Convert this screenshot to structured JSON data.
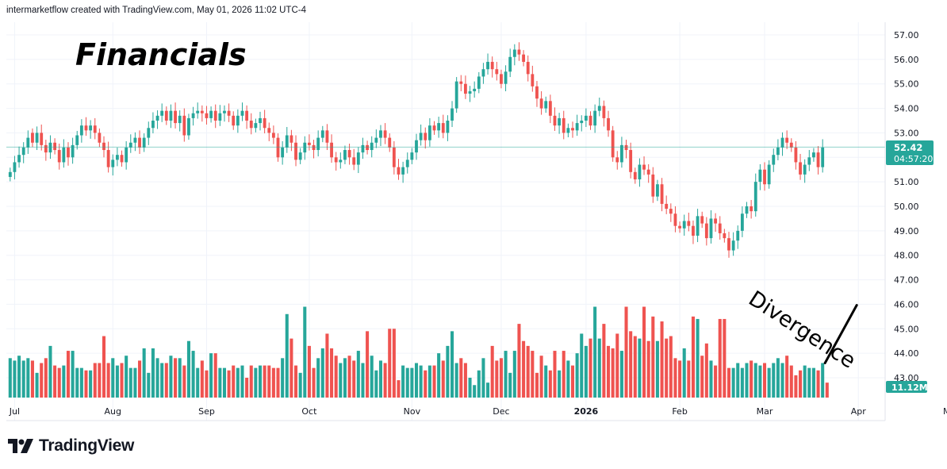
{
  "header": {
    "credit": "intermarketflow created with TradingView.com, May 01, 2026 11:02 UTC-4"
  },
  "brand": {
    "name": "TradingView",
    "icon": "tradingview-logo-icon"
  },
  "colors": {
    "up": "#26a69a",
    "down": "#ef5350",
    "current": "#26a69a",
    "grid": "#f0f3fa",
    "axis_text": "#131722"
  },
  "chart_data": {
    "type": "candlestick",
    "title": "Financials",
    "annotation": "Divergence",
    "price_axis": {
      "ticks": [
        "57.00",
        "56.00",
        "55.00",
        "54.00",
        "53.00",
        "52.00",
        "51.00",
        "50.00",
        "49.00",
        "48.00",
        "47.00",
        "46.00",
        "45.00",
        "44.00",
        "43.00"
      ],
      "ylim": [
        42.5,
        57.3
      ]
    },
    "current_price": 52.42,
    "current_price_label": "52.42",
    "countdown_label": "04:57:20",
    "volume_label": "11.12M",
    "months": [
      {
        "label": "Jul",
        "index": 1
      },
      {
        "label": "Aug",
        "index": 23
      },
      {
        "label": "Sep",
        "index": 44
      },
      {
        "label": "Oct",
        "index": 67
      },
      {
        "label": "Nov",
        "index": 90
      },
      {
        "label": "Dec",
        "index": 110
      },
      {
        "label": "2026",
        "index": 129
      },
      {
        "label": "Feb",
        "index": 150
      },
      {
        "label": "Mar",
        "index": 169
      },
      {
        "label": "Apr",
        "index": 190
      },
      {
        "label": "May",
        "index": 211
      }
    ],
    "close": [
      51.4,
      51.8,
      52.1,
      52.4,
      52.8,
      52.6,
      53.0,
      52.5,
      52.2,
      52.6,
      52.3,
      51.8,
      52.4,
      52.0,
      52.5,
      52.9,
      53.3,
      53.1,
      53.3,
      53.0,
      52.6,
      52.3,
      51.6,
      51.9,
      52.1,
      51.8,
      52.4,
      52.6,
      52.8,
      52.4,
      52.8,
      53.2,
      53.5,
      53.7,
      53.9,
      53.5,
      53.9,
      53.4,
      53.7,
      52.9,
      53.6,
      53.8,
      53.9,
      53.8,
      53.6,
      53.9,
      53.5,
      53.8,
      53.9,
      53.7,
      53.3,
      53.7,
      53.9,
      53.5,
      53.2,
      53.4,
      53.6,
      53.2,
      53.0,
      52.8,
      52.0,
      52.4,
      52.9,
      52.6,
      51.9,
      52.2,
      52.6,
      52.5,
      52.3,
      52.8,
      53.1,
      52.6,
      52.0,
      51.8,
      51.9,
      52.3,
      52.0,
      51.7,
      52.2,
      52.5,
      52.3,
      52.6,
      52.8,
      53.1,
      52.8,
      52.4,
      51.6,
      51.3,
      51.6,
      51.9,
      52.2,
      52.7,
      53.0,
      52.7,
      53.3,
      53.1,
      53.4,
      53.0,
      53.5,
      54.0,
      55.1,
      55.0,
      54.6,
      54.7,
      54.8,
      55.3,
      55.6,
      55.9,
      55.6,
      55.4,
      55.0,
      55.5,
      56.1,
      56.4,
      56.2,
      55.9,
      55.4,
      54.9,
      54.4,
      54.0,
      54.3,
      53.7,
      53.3,
      53.6,
      53.0,
      53.2,
      53.1,
      53.4,
      53.5,
      53.7,
      53.3,
      53.9,
      54.1,
      53.6,
      53.1,
      52.0,
      51.8,
      52.5,
      52.3,
      51.4,
      51.1,
      51.7,
      51.5,
      51.3,
      50.4,
      50.9,
      50.1,
      49.9,
      49.7,
      49.2,
      49.1,
      49.4,
      49.2,
      48.8,
      49.6,
      49.3,
      48.7,
      49.5,
      49.3,
      48.9,
      48.7,
      48.2,
      48.6,
      49.0,
      49.7,
      50.0,
      49.8,
      51.0,
      51.5,
      50.9,
      51.7,
      52.1,
      52.4,
      52.8,
      52.6,
      52.4,
      51.8,
      51.3,
      51.7,
      52.0,
      52.2,
      51.6,
      52.4
    ],
    "open": [
      51.2,
      51.4,
      51.8,
      52.1,
      52.4,
      53.0,
      52.6,
      53.0,
      52.5,
      52.2,
      52.6,
      52.3,
      51.8,
      52.4,
      52.0,
      52.5,
      52.9,
      53.3,
      53.1,
      53.3,
      53.0,
      52.6,
      52.3,
      51.6,
      51.9,
      52.1,
      51.8,
      52.4,
      52.6,
      52.8,
      52.4,
      52.8,
      53.2,
      53.5,
      53.7,
      53.9,
      53.5,
      53.9,
      53.4,
      53.7,
      52.9,
      53.6,
      53.8,
      53.9,
      53.8,
      53.6,
      53.9,
      53.5,
      53.8,
      53.9,
      53.7,
      53.3,
      53.7,
      53.9,
      53.5,
      53.2,
      53.4,
      53.6,
      53.2,
      53.0,
      52.8,
      52.0,
      52.4,
      52.9,
      52.6,
      51.9,
      52.2,
      52.6,
      52.5,
      52.3,
      52.8,
      53.1,
      52.6,
      52.0,
      51.8,
      51.9,
      52.3,
      52.0,
      51.7,
      52.2,
      52.5,
      52.3,
      52.6,
      52.8,
      53.1,
      52.8,
      52.4,
      51.6,
      51.3,
      51.6,
      51.9,
      52.2,
      52.7,
      53.0,
      52.7,
      53.3,
      53.1,
      53.4,
      53.0,
      53.5,
      54.0,
      55.1,
      55.0,
      54.6,
      54.7,
      54.8,
      55.3,
      55.6,
      55.9,
      55.6,
      55.4,
      55.0,
      55.5,
      56.1,
      56.4,
      56.2,
      55.9,
      55.4,
      54.9,
      54.4,
      54.0,
      54.3,
      53.7,
      53.3,
      53.6,
      53.0,
      53.2,
      53.1,
      53.4,
      53.5,
      53.7,
      53.3,
      53.9,
      54.1,
      53.6,
      53.1,
      52.0,
      51.8,
      52.5,
      52.3,
      51.4,
      51.1,
      51.7,
      51.5,
      51.3,
      50.4,
      50.9,
      50.1,
      49.9,
      49.7,
      49.2,
      49.1,
      49.4,
      49.2,
      48.8,
      49.6,
      49.3,
      48.7,
      49.5,
      49.3,
      48.9,
      48.7,
      48.2,
      48.6,
      49.0,
      49.7,
      50.0,
      49.8,
      51.0,
      51.5,
      50.9,
      51.7,
      52.1,
      52.4,
      52.8,
      52.6,
      52.4,
      51.8,
      51.3,
      51.7,
      52.0,
      52.2,
      51.6
    ],
    "volume": [
      43.8,
      43.7,
      43.9,
      43.7,
      43.8,
      43.7,
      43.2,
      43.6,
      43.8,
      44.3,
      43.5,
      43.4,
      43.5,
      44.1,
      44.1,
      43.4,
      43.4,
      43.3,
      43.3,
      43.6,
      43.6,
      44.7,
      43.6,
      43.8,
      43.5,
      43.6,
      43.9,
      43.4,
      43.4,
      43.7,
      44.2,
      43.2,
      44.2,
      43.8,
      43.6,
      43.6,
      43.9,
      43.8,
      43.8,
      43.5,
      44.5,
      44.1,
      43.4,
      43.7,
      43.3,
      44.0,
      44.0,
      43.4,
      43.4,
      43.3,
      43.5,
      43.4,
      43.5,
      43.0,
      43.5,
      43.4,
      43.5,
      43.5,
      43.5,
      43.4,
      43.4,
      43.8,
      45.6,
      44.6,
      43.5,
      43.2,
      45.9,
      44.3,
      43.4,
      43.8,
      44.2,
      44.8,
      44.2,
      43.9,
      43.6,
      43.8,
      43.9,
      43.7,
      44.1,
      43.6,
      44.9,
      43.9,
      43.3,
      43.7,
      43.6,
      45.0,
      45.0,
      42.9,
      43.5,
      43.4,
      43.4,
      43.6,
      43.5,
      43.3,
      43.5,
      43.5,
      44.0,
      43.7,
      44.3,
      44.9,
      43.6,
      43.8,
      43.6,
      43.0,
      42.7,
      43.3,
      43.8,
      42.8,
      44.3,
      43.7,
      43.8,
      44.1,
      43.2,
      44.1,
      45.2,
      44.5,
      44.3,
      44.1,
      43.2,
      43.9,
      43.5,
      43.3,
      44.1,
      43.3,
      44.1,
      43.7,
      43.5,
      44.0,
      44.8,
      44.3,
      44.6,
      45.9,
      44.6,
      45.2,
      44.3,
      44.2,
      44.8,
      44.1,
      45.9,
      44.9,
      44.7,
      44.6,
      45.9,
      44.5,
      45.5,
      44.5,
      45.3,
      44.6,
      44.7,
      43.8,
      43.7,
      44.2,
      43.7,
      45.5,
      45.4,
      43.9,
      44.4,
      43.7,
      43.5,
      45.4,
      45.4,
      43.4,
      43.4,
      43.6,
      43.4,
      43.6,
      43.7,
      43.6,
      43.5,
      43.6,
      43.4,
      43.6,
      43.8,
      43.6,
      43.9,
      43.5,
      43.1,
      43.3,
      43.5,
      43.4,
      43.4,
      43.3,
      43.6,
      42.8
    ]
  }
}
